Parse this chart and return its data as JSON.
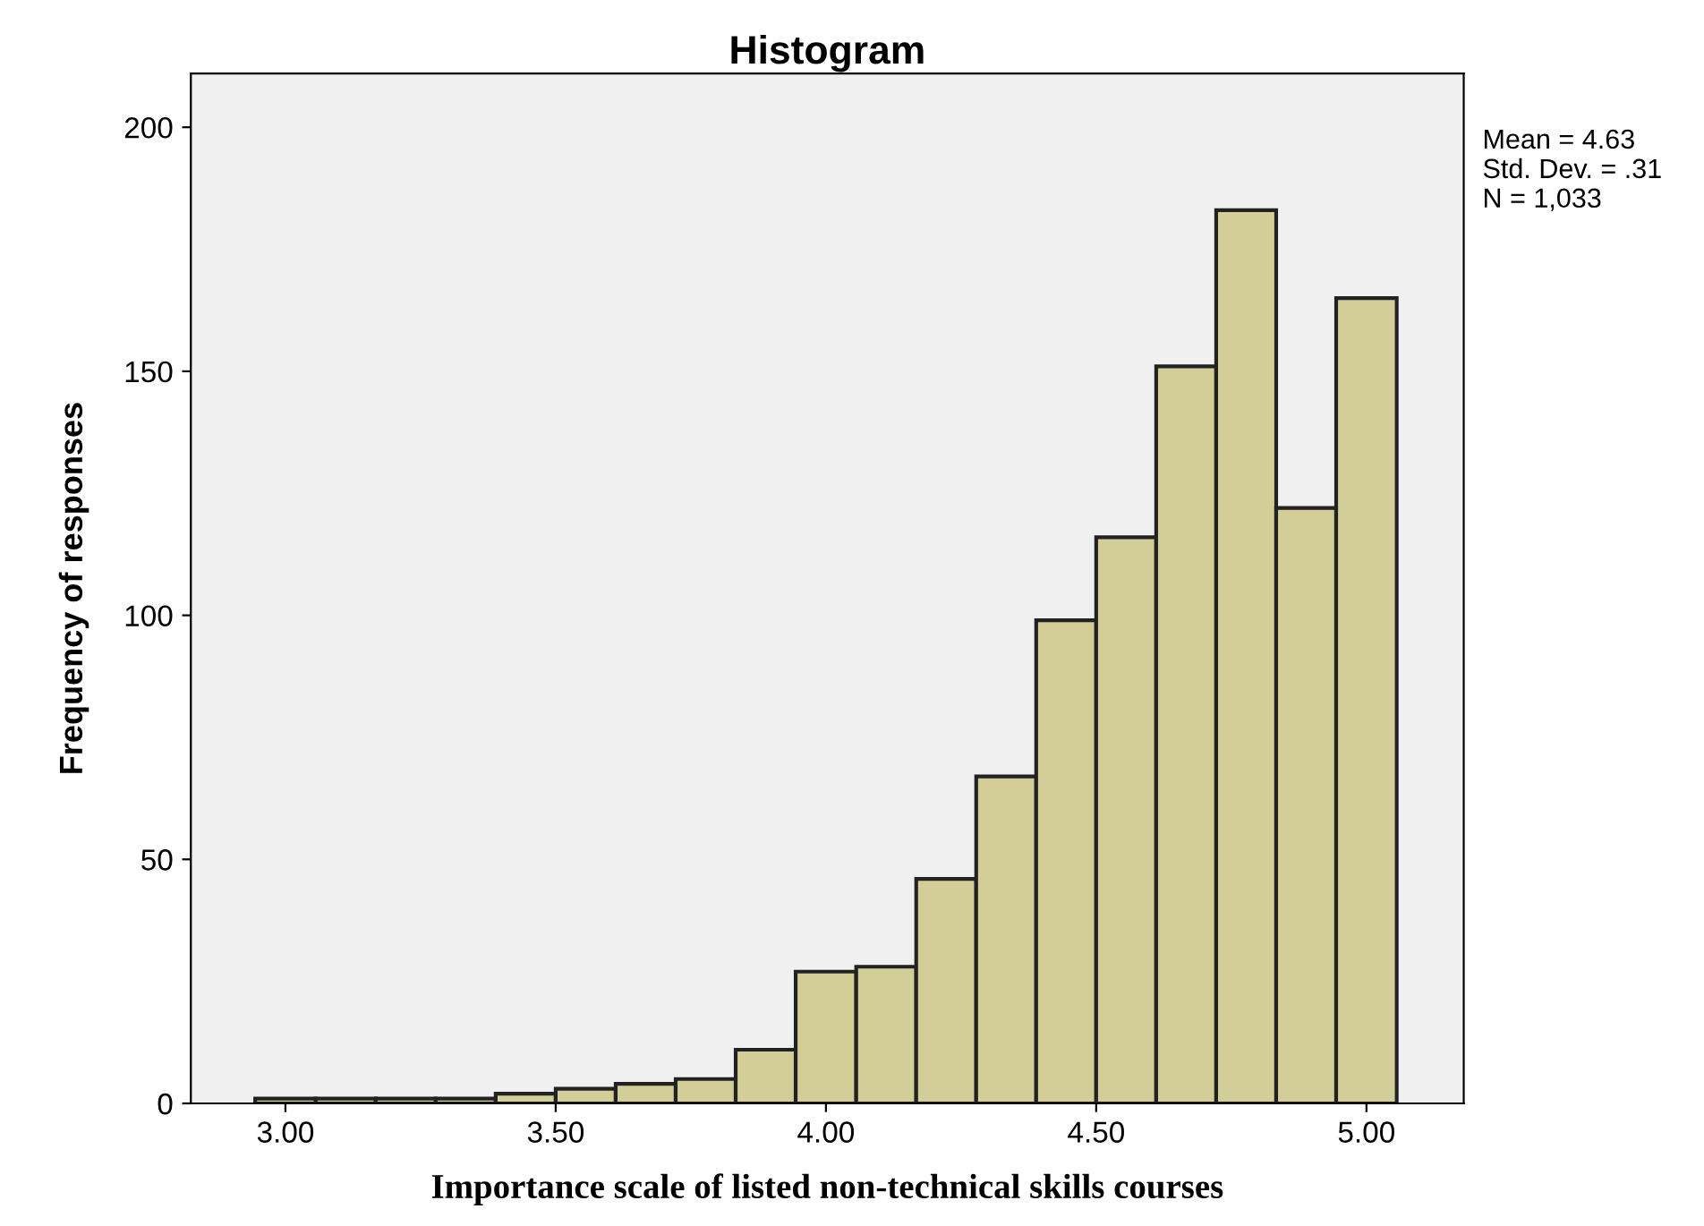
{
  "chart_data": {
    "type": "histogram",
    "title": "Histogram",
    "xlabel": "Importance scale of listed non-technical skills courses",
    "ylabel": "Frequency of responses",
    "bins": [
      2.944,
      3.056,
      3.167,
      3.278,
      3.389,
      3.5,
      3.611,
      3.722,
      3.833,
      3.944,
      4.056,
      4.167,
      4.278,
      4.389,
      4.5,
      4.611,
      4.722,
      4.833,
      4.944,
      5.056
    ],
    "values": [
      1,
      1,
      1,
      1,
      2,
      3,
      4,
      5,
      11,
      27,
      28,
      46,
      67,
      99,
      116,
      151,
      183,
      122,
      165
    ],
    "color": "#d3ce97",
    "xlim": [
      2.825,
      5.18
    ],
    "xticks": [
      {
        "value": 3,
        "label": "3.00"
      },
      {
        "value": 3.5,
        "label": "3.50"
      },
      {
        "value": 4,
        "label": "4.00"
      },
      {
        "value": 4.5,
        "label": "4.50"
      },
      {
        "value": 5,
        "label": "5.00"
      }
    ],
    "ylim": [
      0,
      211
    ],
    "yticks": [
      0,
      50,
      100,
      150,
      200
    ],
    "grid": false,
    "annotations": [
      "Mean = 4.63\nStd. Dev. = .31\nN = 1,033"
    ]
  }
}
